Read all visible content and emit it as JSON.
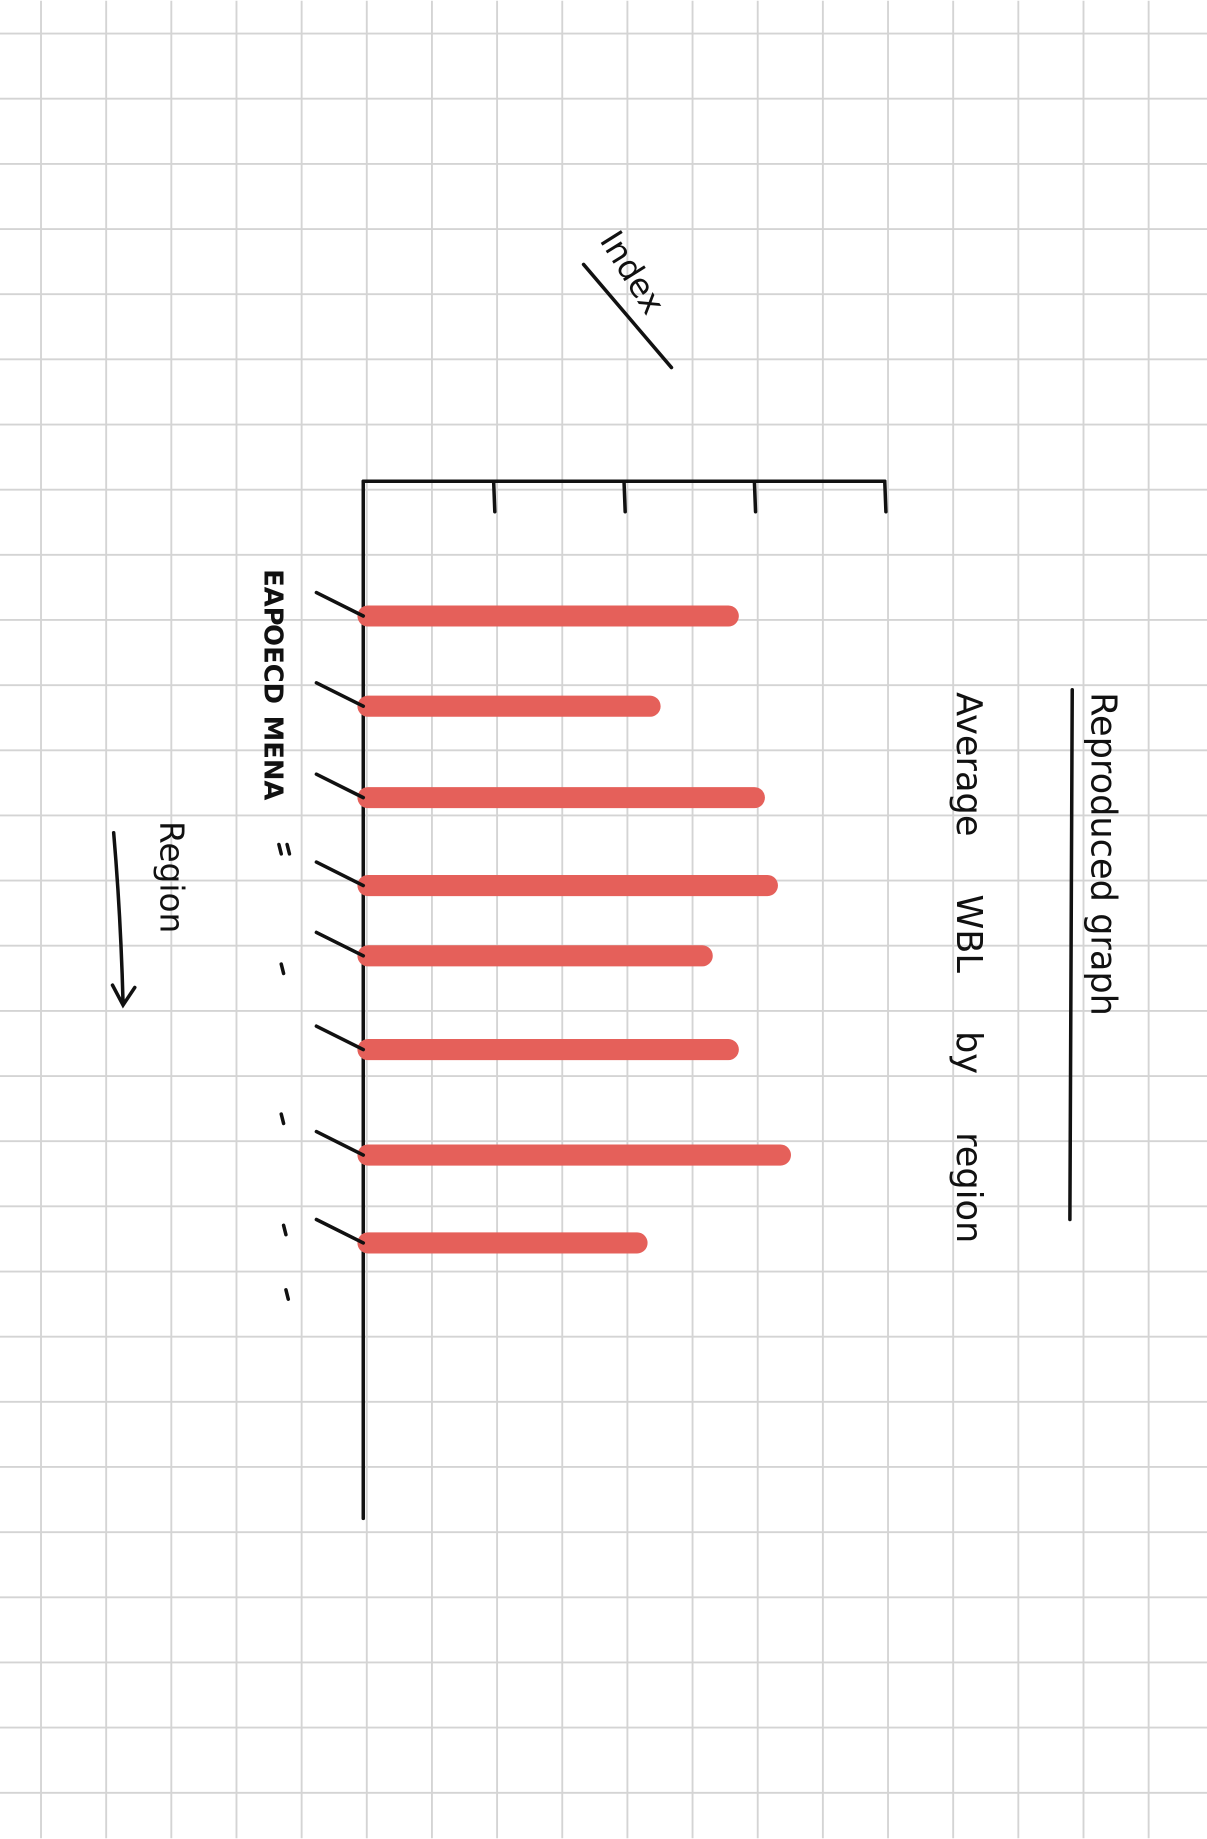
{
  "chart_data": {
    "type": "bar",
    "orientation": "horizontal",
    "title": "Reproduced graph",
    "subtitle": "Average WBL by region",
    "x_label": "Index",
    "y_label": "Region",
    "categories": [
      "EAP",
      "OECD",
      "MENA",
      null,
      null,
      null,
      null,
      null
    ],
    "values": [
      2.8,
      2.2,
      3.0,
      3.1,
      2.6,
      2.8,
      3.2,
      2.1
    ],
    "color": "#e5605a",
    "xlim": [
      0,
      4
    ],
    "xticks": [
      1,
      2,
      3,
      4
    ],
    "grid": false
  }
}
